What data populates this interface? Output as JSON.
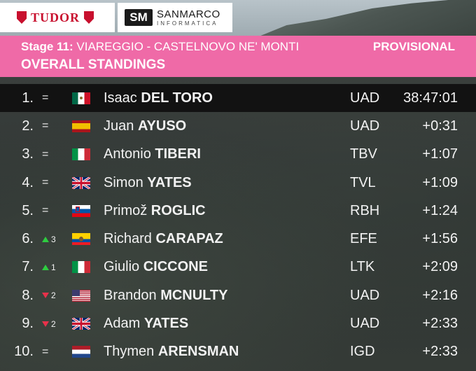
{
  "sponsors": {
    "tudor": "TUDOR",
    "sanmarco_logo": "SM",
    "sanmarco_main": "SANMARCO",
    "sanmarco_sub": "INFORMATICA"
  },
  "header": {
    "stage_label": "Stage 11:",
    "stage_route": "VIAREGGIO - CASTELNOVO NE' MONTI",
    "status": "PROVISIONAL",
    "title": "OVERALL STANDINGS"
  },
  "colors": {
    "header_pink": "#ef6aa7",
    "up_green": "#2ecc40",
    "down_red": "#e8314a"
  },
  "standings": [
    {
      "pos": "1.",
      "move": "=",
      "move_dir": "same",
      "flag": "mexico-flag",
      "first": "Isaac",
      "last": "DEL TORO",
      "team": "UAD",
      "time": "38:47:01"
    },
    {
      "pos": "2.",
      "move": "=",
      "move_dir": "same",
      "flag": "spain-flag",
      "first": "Juan",
      "last": "AYUSO",
      "team": "UAD",
      "time": "+0:31"
    },
    {
      "pos": "3.",
      "move": "=",
      "move_dir": "same",
      "flag": "italy-flag",
      "first": "Antonio",
      "last": "TIBERI",
      "team": "TBV",
      "time": "+1:07"
    },
    {
      "pos": "4.",
      "move": "=",
      "move_dir": "same",
      "flag": "uk-flag",
      "first": "Simon",
      "last": "YATES",
      "team": "TVL",
      "time": "+1:09"
    },
    {
      "pos": "5.",
      "move": "=",
      "move_dir": "same",
      "flag": "slovenia-flag",
      "first": "Primož",
      "last": "ROGLIC",
      "team": "RBH",
      "time": "+1:24"
    },
    {
      "pos": "6.",
      "move": "3",
      "move_dir": "up",
      "flag": "ecuador-flag",
      "first": "Richard",
      "last": "CARAPAZ",
      "team": "EFE",
      "time": "+1:56"
    },
    {
      "pos": "7.",
      "move": "1",
      "move_dir": "up",
      "flag": "italy-flag",
      "first": "Giulio",
      "last": "CICCONE",
      "team": "LTK",
      "time": "+2:09"
    },
    {
      "pos": "8.",
      "move": "2",
      "move_dir": "down",
      "flag": "usa-flag",
      "first": "Brandon",
      "last": "MCNULTY",
      "team": "UAD",
      "time": "+2:16"
    },
    {
      "pos": "9.",
      "move": "2",
      "move_dir": "down",
      "flag": "uk-flag",
      "first": "Adam",
      "last": "YATES",
      "team": "UAD",
      "time": "+2:33"
    },
    {
      "pos": "10.",
      "move": "=",
      "move_dir": "same",
      "flag": "netherlands-flag",
      "first": "Thymen",
      "last": "ARENSMAN",
      "team": "IGD",
      "time": "+2:33"
    }
  ]
}
